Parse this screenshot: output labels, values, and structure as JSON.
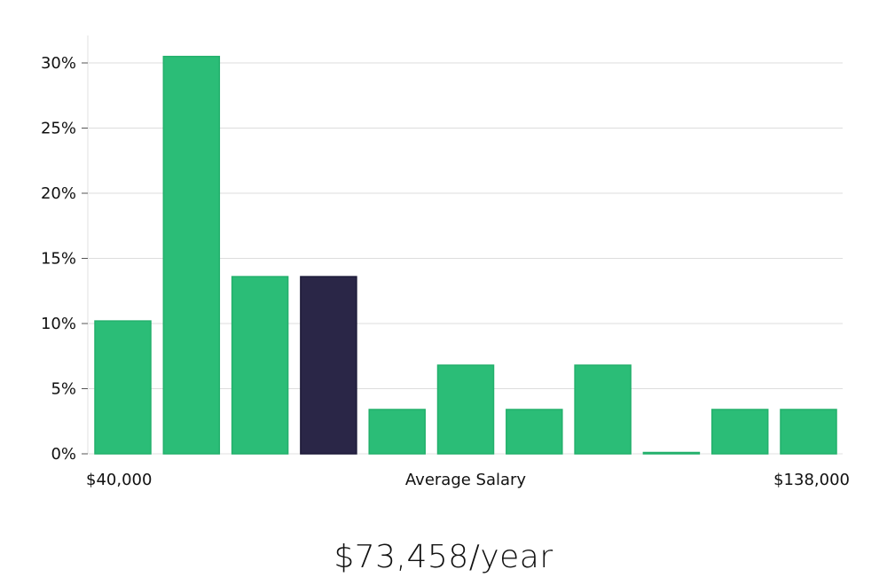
{
  "chart_data": {
    "type": "bar",
    "title": "",
    "ylabel": "",
    "xlabel": "Average Salary",
    "x_start_label": "$40,000",
    "x_end_label": "$138,000",
    "ylim": [
      0,
      32
    ],
    "yticks": [
      0,
      5,
      10,
      15,
      20,
      25,
      30
    ],
    "ytick_labels": [
      "0%",
      "5%",
      "10%",
      "15%",
      "20%",
      "25%",
      "30%"
    ],
    "grid": true,
    "values": [
      10.2,
      30.5,
      13.6,
      13.6,
      3.4,
      6.8,
      3.4,
      6.8,
      0.1,
      3.4,
      3.4
    ],
    "highlight_index": 3,
    "colors": {
      "bar": "#2bbd77",
      "highlight": "#2a2647",
      "grid": "#dddddd",
      "axis": "#e2e2e2"
    }
  },
  "summary": {
    "salary_text": "$73,458/year"
  }
}
